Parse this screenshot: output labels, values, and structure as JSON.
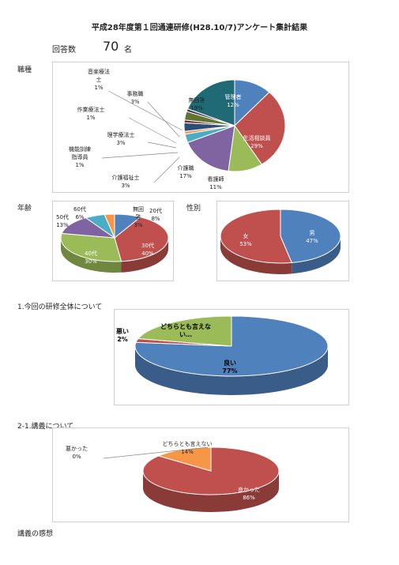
{
  "page": {
    "title": "平成28年度第１回通連研修(H28.10/7)アンケート集計結果",
    "responses_label": "回答数",
    "responses_count": "70",
    "responses_unit": "名",
    "section_occupation": "職種",
    "section_age": "年齢",
    "section_gender": "性別",
    "section_q1": "1.今回の研修全体について",
    "section_q2": "2-1.講義について",
    "section_impressions": "講義の感想"
  },
  "colors": {
    "blue": "#4f81bd",
    "red": "#c0504d",
    "green": "#9bbb59",
    "purple": "#8064a2",
    "aqua": "#4bacc6",
    "orange": "#f79646",
    "navy": "#2c4d75",
    "teal": "#1f6a75"
  },
  "chart_data": [
    {
      "id": "occupation",
      "type": "pie",
      "slices": [
        {
          "label": "管理者",
          "value": 12,
          "pct": "12%",
          "color": "#4f81bd"
        },
        {
          "label": "生活相談員",
          "value": 29,
          "pct": "29%",
          "color": "#c0504d"
        },
        {
          "label": "看護師",
          "value": 11,
          "pct": "11%",
          "color": "#9bbb59"
        },
        {
          "label": "介護職",
          "value": 17,
          "pct": "17%",
          "color": "#8064a2"
        },
        {
          "label": "介護福祉士",
          "value": 3,
          "pct": "3%",
          "color": "#4bacc6"
        },
        {
          "label": "機能訓練指導員",
          "value": 1,
          "pct": "1%",
          "color": "#f79646"
        },
        {
          "label": "理学療法士",
          "value": 3,
          "pct": "3%",
          "color": "#2c4d75"
        },
        {
          "label": "作業療法士",
          "value": 1,
          "pct": "1%",
          "color": "#772c2a"
        },
        {
          "label": "事務職",
          "value": 3,
          "pct": "3%",
          "color": "#5f7530"
        },
        {
          "label": "音楽療法士",
          "value": 1,
          "pct": "1%",
          "color": "#4d3b62"
        },
        {
          "label": "無回答",
          "value": 19,
          "pct": "19%",
          "color": "#1f6a75"
        }
      ]
    },
    {
      "id": "age",
      "type": "pie",
      "slices": [
        {
          "label": "20代",
          "value": 8,
          "pct": "8%",
          "color": "#4f81bd"
        },
        {
          "label": "30代",
          "value": 40,
          "pct": "40%",
          "color": "#c0504d"
        },
        {
          "label": "40代",
          "value": 30,
          "pct": "30%",
          "color": "#9bbb59"
        },
        {
          "label": "50代",
          "value": 13,
          "pct": "13%",
          "color": "#8064a2"
        },
        {
          "label": "60代",
          "value": 6,
          "pct": "6%",
          "color": "#4bacc6"
        },
        {
          "label": "無回答",
          "value": 3,
          "pct": "3%",
          "color": "#f79646"
        }
      ]
    },
    {
      "id": "gender",
      "type": "pie",
      "slices": [
        {
          "label": "男",
          "value": 47,
          "pct": "47%",
          "color": "#4f81bd"
        },
        {
          "label": "女",
          "value": 53,
          "pct": "53%",
          "color": "#c0504d"
        }
      ]
    },
    {
      "id": "q1",
      "type": "pie",
      "slices": [
        {
          "label": "良い",
          "value": 77,
          "pct": "77%",
          "color": "#4f81bd"
        },
        {
          "label": "悪い",
          "value": 2,
          "pct": "2%",
          "color": "#c0504d"
        },
        {
          "label": "どちらとも言えない…",
          "value": 21,
          "pct": "",
          "color": "#9bbb59"
        }
      ]
    },
    {
      "id": "q2",
      "type": "pie",
      "slices": [
        {
          "label": "良かった",
          "value": 86,
          "pct": "86%",
          "color": "#c0504d"
        },
        {
          "label": "悪かった",
          "value": 0,
          "pct": "0%",
          "color": "#4f81bd"
        },
        {
          "label": "どちらとも言えない",
          "value": 14,
          "pct": "14%",
          "color": "#f79646"
        }
      ]
    }
  ]
}
